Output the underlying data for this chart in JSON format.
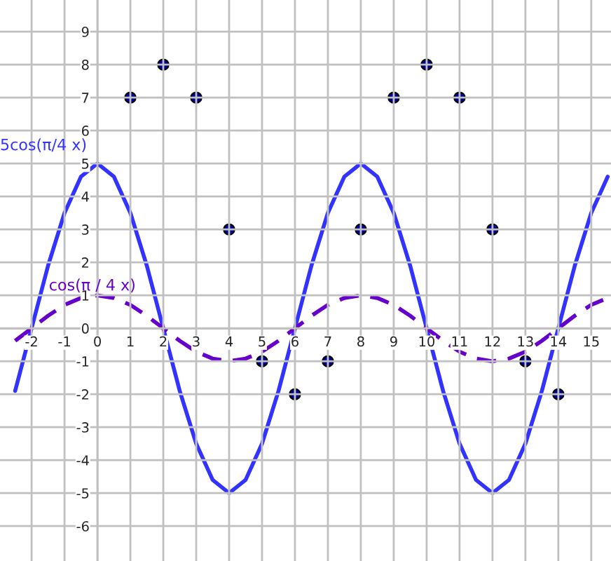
{
  "chart_data": {
    "type": "line",
    "xlim": [
      -2.96,
      15.6
    ],
    "ylim": [
      -7.06,
      9.96
    ],
    "xticks": [
      -2,
      -1,
      0,
      1,
      2,
      3,
      4,
      5,
      6,
      7,
      8,
      9,
      10,
      11,
      12,
      13,
      14,
      15
    ],
    "yticks": [
      -6,
      -5,
      -4,
      -3,
      -2,
      -1,
      0,
      1,
      2,
      3,
      4,
      5,
      6,
      7,
      8,
      9
    ],
    "grid": true,
    "series": [
      {
        "name": "5cos(π/4 x)",
        "line_style": "solid",
        "marker": "none",
        "color": "#3333ff",
        "x": [
          -2.5,
          -2,
          -1.5,
          -1,
          -0.5,
          0,
          0.5,
          1,
          1.5,
          2,
          2.5,
          3,
          3.5,
          4,
          4.5,
          5,
          5.5,
          6,
          6.5,
          7,
          7.5,
          8,
          8.5,
          9,
          9.5,
          10,
          10.5,
          11,
          11.5,
          12,
          12.5,
          13,
          13.5,
          14,
          14.5,
          15,
          15.5
        ],
        "values": [
          -1.9,
          0,
          1.9,
          3.5,
          4.6,
          5,
          4.6,
          3.5,
          1.9,
          0,
          -1.9,
          -3.5,
          -4.6,
          -5,
          -4.6,
          -3.5,
          -1.9,
          0,
          1.9,
          3.5,
          4.6,
          5,
          4.6,
          3.5,
          1.9,
          0,
          -1.9,
          -3.5,
          -4.6,
          -5,
          -4.6,
          -3.5,
          -1.9,
          0,
          1.9,
          3.5,
          4.6
        ]
      },
      {
        "name": "cos(π / 4 x)",
        "line_style": "dashed",
        "marker": "none",
        "color": "#6600cc",
        "x": [
          -2.5,
          -2,
          -1.5,
          -1,
          -0.5,
          0,
          0.5,
          1,
          1.5,
          2,
          2.5,
          3,
          3.5,
          4,
          4.5,
          5,
          5.5,
          6,
          6.5,
          7,
          7.5,
          8,
          8.5,
          9,
          9.5,
          10,
          10.5,
          11,
          11.5,
          12,
          12.5,
          13,
          13.5,
          14,
          14.5,
          15,
          15.5
        ],
        "values": [
          -0.38,
          0,
          0.38,
          0.71,
          0.92,
          1,
          0.92,
          0.71,
          0.38,
          0,
          -0.38,
          -0.71,
          -0.92,
          -1,
          -0.92,
          -0.71,
          -0.38,
          0,
          0.38,
          0.71,
          0.92,
          1,
          0.92,
          0.71,
          0.38,
          0,
          -0.38,
          -0.71,
          -0.92,
          -1,
          -0.92,
          -0.71,
          -0.38,
          0,
          0.38,
          0.71,
          0.92
        ]
      },
      {
        "type": "scatter",
        "marker": "circle",
        "color": "#000099",
        "x": [
          1,
          2,
          3,
          4,
          5,
          6,
          7,
          8,
          9,
          10,
          11,
          12,
          13,
          14
        ],
        "values": [
          7,
          8,
          7,
          3,
          -1,
          -2,
          -1,
          3,
          7,
          8,
          7,
          3,
          -1,
          -2
        ]
      }
    ]
  }
}
